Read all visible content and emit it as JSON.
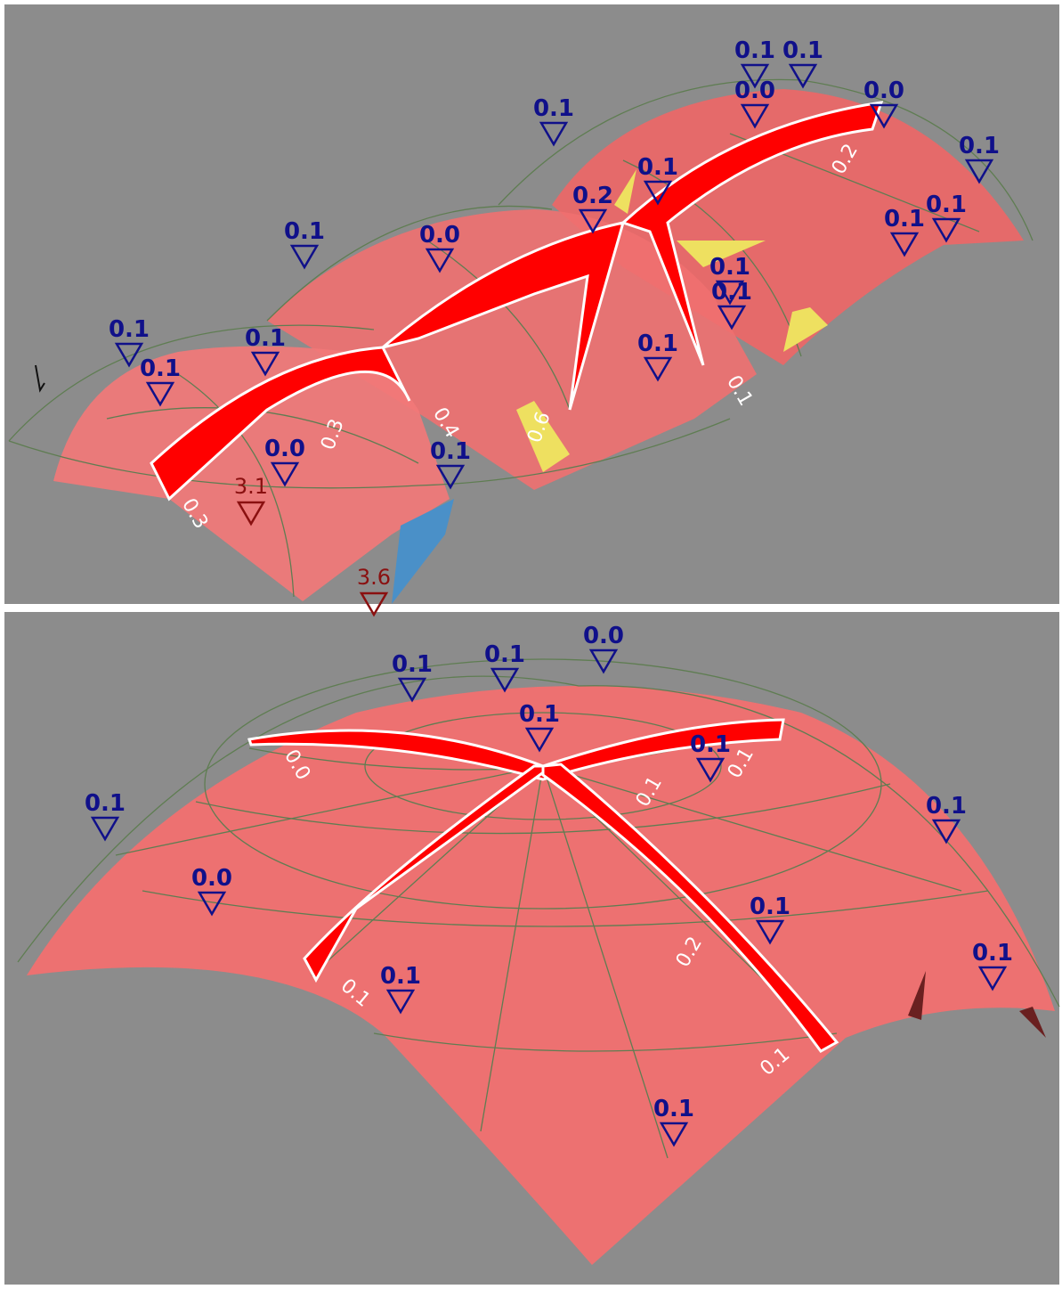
{
  "panels": [
    {
      "markers": [
        "0.1",
        "0.1",
        "0.0",
        "0.0",
        "0.1",
        "0.1",
        "0.1",
        "0.2",
        "0.1",
        "0.1",
        "0.1",
        "0.0",
        "0.1",
        "0.1",
        "0.1",
        "0.1",
        "0.1",
        "0.1",
        "0.0",
        "0.1"
      ],
      "red_markers": [
        "3.1",
        "3.6"
      ],
      "member_labels": [
        "0.2",
        "0.3",
        "0.4",
        "0.6",
        "0.1",
        "0.3"
      ]
    },
    {
      "markers": [
        "0.0",
        "0.1",
        "0.1",
        "0.1",
        "0.1",
        "0.1",
        "0.1",
        "0.0",
        "0.1",
        "0.1",
        "0.1",
        "0.1"
      ],
      "red_markers": [],
      "member_labels": [
        "0.0",
        "0.1",
        "0.1",
        "0.2",
        "0.1",
        "0.1"
      ]
    }
  ]
}
